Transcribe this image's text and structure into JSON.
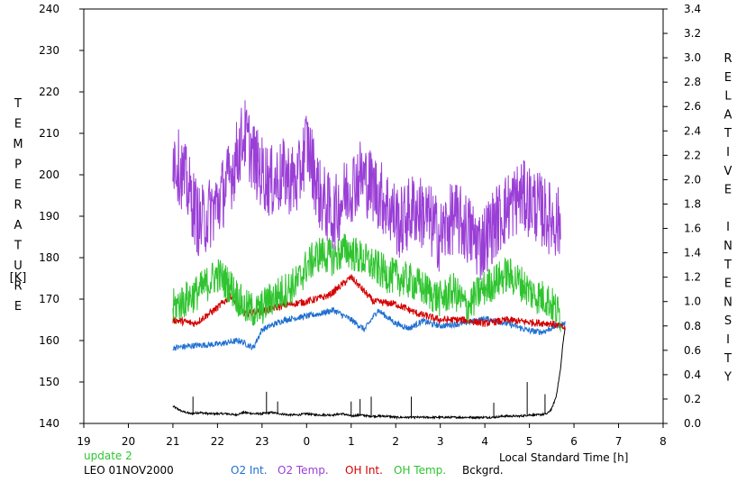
{
  "chart_data": {
    "type": "line",
    "left_axis_label": "TEMPERATURE",
    "left_axis_unit": "[K]",
    "right_axis_label": "RELATIVE INTENSITY",
    "x_axis_label": "Local Standard Time [h]",
    "x_ticks": [
      "19",
      "20",
      "21",
      "22",
      "23",
      "0",
      "1",
      "2",
      "3",
      "4",
      "5",
      "6",
      "7",
      "8"
    ],
    "left_ticks": [
      140,
      150,
      160,
      170,
      180,
      190,
      200,
      210,
      220,
      230,
      240
    ],
    "right_ticks": [
      "0.0",
      "0.2",
      "0.4",
      "0.6",
      "0.8",
      "1.0",
      "1.2",
      "1.4",
      "1.6",
      "1.8",
      "2.0",
      "2.2",
      "2.4",
      "2.6",
      "2.8",
      "3.0",
      "3.2",
      "3.4"
    ],
    "xlim": [
      19,
      32
    ],
    "ylim_left": [
      140,
      240
    ],
    "ylim_right": [
      0,
      3.4
    ],
    "grid": false,
    "update_text": "update 2",
    "station_text": "LEO 01NOV2000",
    "colors": {
      "o2_int": "#1f6fd1",
      "o2_temp": "#9a3fd6",
      "oh_int": "#d40000",
      "oh_temp": "#2fc42f",
      "bckgrd": "#000000",
      "update": "#2fc42f"
    },
    "series": [
      {
        "name": "O2 Int.",
        "axis": "right",
        "color_key": "o2_int",
        "amp": 0.025,
        "x": [
          21.0,
          21.5,
          22.0,
          22.5,
          22.8,
          23.0,
          23.5,
          24.0,
          24.3,
          24.6,
          25.0,
          25.3,
          25.6,
          26.0,
          26.3,
          26.6,
          27.0,
          27.5,
          28.0,
          28.5,
          29.0,
          29.3,
          29.6,
          29.8
        ],
        "y": [
          0.62,
          0.64,
          0.65,
          0.68,
          0.62,
          0.77,
          0.85,
          0.88,
          0.9,
          0.93,
          0.85,
          0.77,
          0.93,
          0.82,
          0.78,
          0.84,
          0.8,
          0.82,
          0.86,
          0.82,
          0.76,
          0.75,
          0.8,
          0.82
        ]
      },
      {
        "name": "O2 Temp.",
        "axis": "left",
        "color_key": "o2_temp",
        "amp": 9,
        "x": [
          21.0,
          21.3,
          21.6,
          22.0,
          22.3,
          22.6,
          22.9,
          23.2,
          23.5,
          23.8,
          24.0,
          24.3,
          24.6,
          24.9,
          25.2,
          25.5,
          25.8,
          26.1,
          26.4,
          26.7,
          27.0,
          27.3,
          27.6,
          27.9,
          28.2,
          28.5,
          28.8,
          29.1,
          29.4,
          29.7
        ],
        "y": [
          205,
          198,
          188,
          193,
          200,
          210,
          202,
          198,
          200,
          198,
          208,
          195,
          190,
          196,
          200,
          197,
          193,
          188,
          192,
          190,
          185,
          190,
          187,
          183,
          188,
          192,
          195,
          193,
          190,
          188
        ]
      },
      {
        "name": "OH Int.",
        "axis": "right",
        "color_key": "oh_int",
        "amp": 0.03,
        "x": [
          21.0,
          21.5,
          22.0,
          22.3,
          22.6,
          23.0,
          23.5,
          24.0,
          24.5,
          25.0,
          25.5,
          26.0,
          26.5,
          27.0,
          27.5,
          28.0,
          28.5,
          29.0,
          29.5,
          29.8
        ],
        "y": [
          0.85,
          0.82,
          0.95,
          1.05,
          0.9,
          0.92,
          0.97,
          1.0,
          1.05,
          1.2,
          1.0,
          0.98,
          0.9,
          0.85,
          0.85,
          0.82,
          0.85,
          0.83,
          0.82,
          0.78
        ]
      },
      {
        "name": "OH Temp.",
        "axis": "left",
        "color_key": "oh_temp",
        "amp": 4.5,
        "x": [
          21.0,
          21.3,
          21.6,
          22.0,
          22.3,
          22.6,
          22.9,
          23.2,
          23.5,
          23.8,
          24.0,
          24.3,
          24.6,
          24.9,
          25.2,
          25.5,
          25.8,
          26.1,
          26.4,
          26.7,
          27.0,
          27.3,
          27.6,
          27.9,
          28.2,
          28.5,
          28.8,
          29.1,
          29.4,
          29.7
        ],
        "y": [
          168,
          170,
          172,
          176,
          173,
          168,
          167,
          170,
          172,
          174,
          178,
          181,
          180,
          182,
          180,
          178,
          176,
          175,
          174,
          172,
          170,
          172,
          168,
          172,
          174,
          176,
          174,
          171,
          170,
          166
        ]
      },
      {
        "name": "Bckgrd.",
        "axis": "right",
        "color_key": "bckgrd",
        "amp": 0.008,
        "x": [
          21.0,
          21.2,
          21.4,
          21.6,
          21.8,
          22.0,
          22.2,
          22.4,
          22.6,
          22.8,
          23.0,
          23.2,
          23.4,
          23.6,
          23.8,
          24.0,
          24.2,
          24.4,
          24.6,
          24.8,
          25.0,
          25.2,
          25.4,
          25.6,
          25.8,
          26.0,
          26.2,
          26.4,
          26.6,
          26.8,
          27.0,
          27.2,
          27.4,
          27.6,
          27.8,
          28.0,
          28.2,
          28.4,
          28.6,
          28.8,
          29.0,
          29.2,
          29.4,
          29.5,
          29.6,
          29.7,
          29.75,
          29.8
        ],
        "y": [
          0.14,
          0.1,
          0.08,
          0.09,
          0.08,
          0.08,
          0.08,
          0.07,
          0.09,
          0.08,
          0.08,
          0.09,
          0.08,
          0.07,
          0.07,
          0.08,
          0.07,
          0.07,
          0.07,
          0.08,
          0.06,
          0.07,
          0.06,
          0.06,
          0.06,
          0.05,
          0.05,
          0.05,
          0.05,
          0.05,
          0.05,
          0.05,
          0.05,
          0.05,
          0.05,
          0.05,
          0.05,
          0.06,
          0.06,
          0.06,
          0.07,
          0.07,
          0.08,
          0.12,
          0.22,
          0.45,
          0.65,
          0.78
        ]
      }
    ],
    "spikes": [
      {
        "x": 21.45,
        "y": 0.22
      },
      {
        "x": 23.1,
        "y": 0.26
      },
      {
        "x": 23.35,
        "y": 0.18
      },
      {
        "x": 25.0,
        "y": 0.18
      },
      {
        "x": 25.2,
        "y": 0.2
      },
      {
        "x": 25.45,
        "y": 0.22
      },
      {
        "x": 26.35,
        "y": 0.22
      },
      {
        "x": 28.2,
        "y": 0.17
      },
      {
        "x": 28.95,
        "y": 0.34
      },
      {
        "x": 29.35,
        "y": 0.24
      }
    ]
  }
}
